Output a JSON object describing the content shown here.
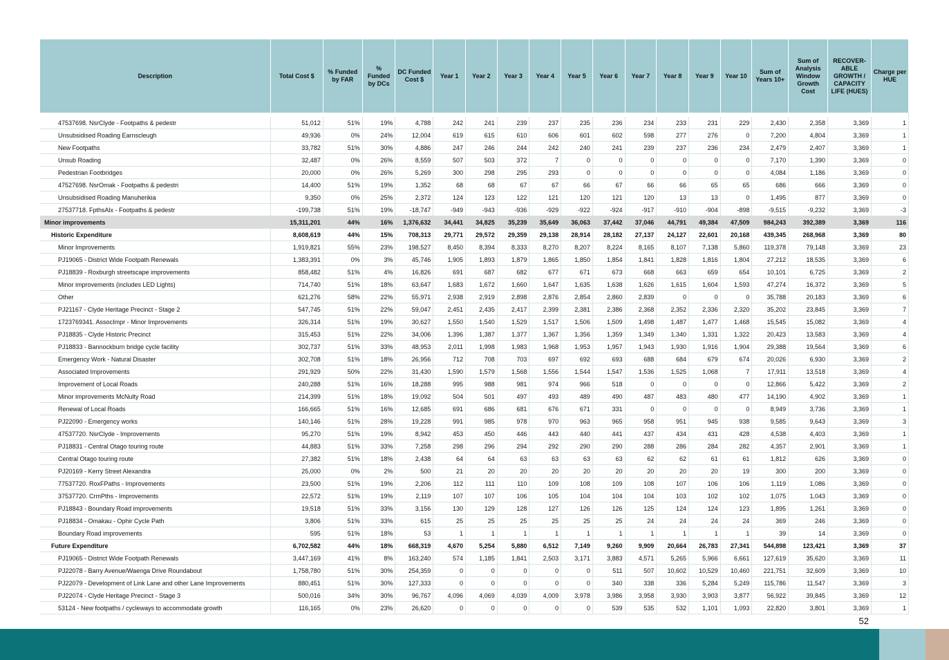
{
  "headers": [
    "Description",
    "Total Cost $",
    "% Funded by FAR",
    "% Funded by DCs",
    "DC Funded Cost $",
    "Year 1",
    "Year 2",
    "Year 3",
    "Year 4",
    "Year 5",
    "Year 6",
    "Year 7",
    "Year 8",
    "Year 9",
    "Year 10",
    "Sum of Years 10+",
    "Sum of Analysis Window Growth Cost",
    "RECOVER-ABLE GROWTH / CAPACITY LIFE (HUES)",
    "Charge per HUE"
  ],
  "rows": [
    {
      "level": 2,
      "cells": [
        "47537698. NsrClyde - Footpaths & pedestr",
        "51,012",
        "51%",
        "19%",
        "4,788",
        "242",
        "241",
        "239",
        "237",
        "235",
        "236",
        "234",
        "233",
        "231",
        "229",
        "2,430",
        "2,358",
        "3,369",
        "1"
      ]
    },
    {
      "level": 2,
      "cells": [
        "Unsubsidised Roading Earnscleugh",
        "49,936",
        "0%",
        "24%",
        "12,004",
        "619",
        "615",
        "610",
        "606",
        "601",
        "602",
        "598",
        "277",
        "276",
        "0",
        "7,200",
        "4,804",
        "3,369",
        "1"
      ]
    },
    {
      "level": 2,
      "cells": [
        "New Footpaths",
        "33,782",
        "51%",
        "30%",
        "4,886",
        "247",
        "246",
        "244",
        "242",
        "240",
        "241",
        "239",
        "237",
        "236",
        "234",
        "2,479",
        "2,407",
        "3,369",
        "1"
      ]
    },
    {
      "level": 2,
      "cells": [
        "Unsub Roading",
        "32,487",
        "0%",
        "26%",
        "8,559",
        "507",
        "503",
        "372",
        "7",
        "0",
        "0",
        "0",
        "0",
        "0",
        "0",
        "7,170",
        "1,390",
        "3,369",
        "0"
      ]
    },
    {
      "level": 2,
      "cells": [
        "Pedestrian Footbridges",
        "20,000",
        "0%",
        "26%",
        "5,269",
        "300",
        "298",
        "295",
        "293",
        "0",
        "0",
        "0",
        "0",
        "0",
        "0",
        "4,084",
        "1,186",
        "3,369",
        "0"
      ]
    },
    {
      "level": 2,
      "cells": [
        "47527698. NsrOmak - Footpaths & pedestri",
        "14,400",
        "51%",
        "19%",
        "1,352",
        "68",
        "68",
        "67",
        "67",
        "66",
        "67",
        "66",
        "66",
        "65",
        "65",
        "686",
        "666",
        "3,369",
        "0"
      ]
    },
    {
      "level": 2,
      "cells": [
        "Unsubsidised Roading Manuherikia",
        "9,350",
        "0%",
        "25%",
        "2,372",
        "124",
        "123",
        "122",
        "121",
        "120",
        "121",
        "120",
        "13",
        "13",
        "0",
        "1,495",
        "877",
        "3,369",
        "0"
      ]
    },
    {
      "level": 2,
      "cells": [
        "27537718. FpthsAlx - Footpaths & pedestr",
        "-199,738",
        "51%",
        "19%",
        "-18,747",
        "-949",
        "-943",
        "-936",
        "-929",
        "-922",
        "-924",
        "-917",
        "-910",
        "-904",
        "-898",
        "-9,515",
        "-9,232",
        "3,369",
        "-3"
      ]
    },
    {
      "level": 0,
      "bold": true,
      "shaded": true,
      "cells": [
        "Minor improvements",
        "15,311,201",
        "44%",
        "16%",
        "1,376,632",
        "34,441",
        "34,825",
        "35,239",
        "35,649",
        "36,063",
        "37,442",
        "37,046",
        "44,791",
        "49,384",
        "47,509",
        "984,243",
        "392,389",
        "3,369",
        "116"
      ]
    },
    {
      "level": 1,
      "bold": true,
      "cells": [
        "Historic Expenditure",
        "8,608,619",
        "44%",
        "15%",
        "708,313",
        "29,771",
        "29,572",
        "29,359",
        "29,138",
        "28,914",
        "28,182",
        "27,137",
        "24,127",
        "22,601",
        "20,168",
        "439,345",
        "268,968",
        "3,369",
        "80"
      ]
    },
    {
      "level": 2,
      "cells": [
        "Minor Improvements",
        "1,919,821",
        "55%",
        "23%",
        "198,527",
        "8,450",
        "8,394",
        "8,333",
        "8,270",
        "8,207",
        "8,224",
        "8,165",
        "8,107",
        "7,138",
        "5,860",
        "119,378",
        "79,148",
        "3,369",
        "23"
      ]
    },
    {
      "level": 2,
      "cells": [
        "PJ19065 - District Wide Footpath Renewals",
        "1,383,391",
        "0%",
        "3%",
        "45,746",
        "1,905",
        "1,893",
        "1,879",
        "1,865",
        "1,850",
        "1,854",
        "1,841",
        "1,828",
        "1,816",
        "1,804",
        "27,212",
        "18,535",
        "3,369",
        "6"
      ]
    },
    {
      "level": 2,
      "cells": [
        "PJ18839 - Roxburgh streetscape improvements",
        "858,482",
        "51%",
        "4%",
        "16,826",
        "691",
        "687",
        "682",
        "677",
        "671",
        "673",
        "668",
        "663",
        "659",
        "654",
        "10,101",
        "6,725",
        "3,369",
        "2"
      ]
    },
    {
      "level": 2,
      "cells": [
        "Minor improvements (includes LED Lights)",
        "714,740",
        "51%",
        "18%",
        "63,647",
        "1,683",
        "1,672",
        "1,660",
        "1,647",
        "1,635",
        "1,638",
        "1,626",
        "1,615",
        "1,604",
        "1,593",
        "47,274",
        "16,372",
        "3,369",
        "5"
      ]
    },
    {
      "level": 2,
      "cells": [
        "Other",
        "621,276",
        "58%",
        "22%",
        "55,971",
        "2,938",
        "2,919",
        "2,898",
        "2,876",
        "2,854",
        "2,860",
        "2,839",
        "0",
        "0",
        "0",
        "35,788",
        "20,183",
        "3,369",
        "6"
      ]
    },
    {
      "level": 2,
      "cells": [
        "PJ21167 - Clyde Heritage Precinct - Stage 2",
        "547,745",
        "51%",
        "22%",
        "59,047",
        "2,451",
        "2,435",
        "2,417",
        "2,399",
        "2,381",
        "2,386",
        "2,368",
        "2,352",
        "2,336",
        "2,320",
        "35,202",
        "23,845",
        "3,369",
        "7"
      ]
    },
    {
      "level": 2,
      "cells": [
        "1723769341. AssocImpr - Minor Improvements",
        "326,314",
        "51%",
        "19%",
        "30,627",
        "1,550",
        "1,540",
        "1,529",
        "1,517",
        "1,506",
        "1,509",
        "1,498",
        "1,487",
        "1,477",
        "1,468",
        "15,545",
        "15,082",
        "3,369",
        "4"
      ]
    },
    {
      "level": 2,
      "cells": [
        "PJ18835 - Clyde Historic Precinct",
        "315,453",
        "51%",
        "22%",
        "34,006",
        "1,396",
        "1,387",
        "1,377",
        "1,367",
        "1,356",
        "1,359",
        "1,349",
        "1,340",
        "1,331",
        "1,322",
        "20,423",
        "13,583",
        "3,369",
        "4"
      ]
    },
    {
      "level": 2,
      "cells": [
        "PJ18833 - Bannockburn bridge cycle facility",
        "302,737",
        "51%",
        "33%",
        "48,953",
        "2,011",
        "1,998",
        "1,983",
        "1,968",
        "1,953",
        "1,957",
        "1,943",
        "1,930",
        "1,916",
        "1,904",
        "29,388",
        "19,564",
        "3,369",
        "6"
      ]
    },
    {
      "level": 2,
      "cells": [
        "Emergency Work - Natural Disaster",
        "302,708",
        "51%",
        "18%",
        "26,956",
        "712",
        "708",
        "703",
        "697",
        "692",
        "693",
        "688",
        "684",
        "679",
        "674",
        "20,026",
        "6,930",
        "3,369",
        "2"
      ]
    },
    {
      "level": 2,
      "cells": [
        "Associated Improvements",
        "291,929",
        "50%",
        "22%",
        "31,430",
        "1,590",
        "1,579",
        "1,568",
        "1,556",
        "1,544",
        "1,547",
        "1,536",
        "1,525",
        "1,068",
        "7",
        "17,911",
        "13,518",
        "3,369",
        "4"
      ]
    },
    {
      "level": 2,
      "cells": [
        "Improvement of Local Roads",
        "240,288",
        "51%",
        "16%",
        "18,288",
        "995",
        "988",
        "981",
        "974",
        "966",
        "518",
        "0",
        "0",
        "0",
        "0",
        "12,866",
        "5,422",
        "3,369",
        "2"
      ]
    },
    {
      "level": 2,
      "cells": [
        "Minor improvements McNulty Road",
        "214,399",
        "51%",
        "18%",
        "19,092",
        "504",
        "501",
        "497",
        "493",
        "489",
        "490",
        "487",
        "483",
        "480",
        "477",
        "14,190",
        "4,902",
        "3,369",
        "1"
      ]
    },
    {
      "level": 2,
      "cells": [
        "Renewal of Local Roads",
        "166,665",
        "51%",
        "16%",
        "12,685",
        "691",
        "686",
        "681",
        "676",
        "671",
        "331",
        "0",
        "0",
        "0",
        "0",
        "8,949",
        "3,736",
        "3,369",
        "1"
      ]
    },
    {
      "level": 2,
      "cells": [
        "PJ22090 - Emergency works",
        "140,146",
        "51%",
        "28%",
        "19,228",
        "991",
        "985",
        "978",
        "970",
        "963",
        "965",
        "958",
        "951",
        "945",
        "938",
        "9,585",
        "9,643",
        "3,369",
        "3"
      ]
    },
    {
      "level": 2,
      "cells": [
        "47537720. NsrClyde - Improvements",
        "95,270",
        "51%",
        "19%",
        "8,942",
        "453",
        "450",
        "446",
        "443",
        "440",
        "441",
        "437",
        "434",
        "431",
        "428",
        "4,538",
        "4,403",
        "3,369",
        "1"
      ]
    },
    {
      "level": 2,
      "cells": [
        "PJ18831 - Central Otago touring route",
        "44,883",
        "51%",
        "33%",
        "7,258",
        "298",
        "296",
        "294",
        "292",
        "290",
        "290",
        "288",
        "286",
        "284",
        "282",
        "4,357",
        "2,901",
        "3,369",
        "1"
      ]
    },
    {
      "level": 2,
      "cells": [
        "Central Otago touring route",
        "27,382",
        "51%",
        "18%",
        "2,438",
        "64",
        "64",
        "63",
        "63",
        "63",
        "63",
        "62",
        "62",
        "61",
        "61",
        "1,812",
        "626",
        "3,369",
        "0"
      ]
    },
    {
      "level": 2,
      "cells": [
        "PJ20169 - Kerry Street Alexandra",
        "25,000",
        "0%",
        "2%",
        "500",
        "21",
        "20",
        "20",
        "20",
        "20",
        "20",
        "20",
        "20",
        "20",
        "19",
        "300",
        "200",
        "3,369",
        "0"
      ]
    },
    {
      "level": 2,
      "cells": [
        "77537720. RoxFPaths - Improvements",
        "23,500",
        "51%",
        "19%",
        "2,206",
        "112",
        "111",
        "110",
        "109",
        "108",
        "109",
        "108",
        "107",
        "106",
        "106",
        "1,119",
        "1,086",
        "3,369",
        "0"
      ]
    },
    {
      "level": 2,
      "cells": [
        "37537720. CrmPths - Improvements",
        "22,572",
        "51%",
        "19%",
        "2,119",
        "107",
        "107",
        "106",
        "105",
        "104",
        "104",
        "104",
        "103",
        "102",
        "102",
        "1,075",
        "1,043",
        "3,369",
        "0"
      ]
    },
    {
      "level": 2,
      "cells": [
        "PJ18843 - Boundary Road improvements",
        "19,518",
        "51%",
        "33%",
        "3,156",
        "130",
        "129",
        "128",
        "127",
        "126",
        "126",
        "125",
        "124",
        "124",
        "123",
        "1,895",
        "1,261",
        "3,369",
        "0"
      ]
    },
    {
      "level": 2,
      "cells": [
        "PJ18834 - Omakau - Ophir Cycle Path",
        "3,806",
        "51%",
        "33%",
        "615",
        "25",
        "25",
        "25",
        "25",
        "25",
        "25",
        "24",
        "24",
        "24",
        "24",
        "369",
        "246",
        "3,369",
        "0"
      ]
    },
    {
      "level": 2,
      "cells": [
        "Boundary Road improvements",
        "595",
        "51%",
        "18%",
        "53",
        "1",
        "1",
        "1",
        "1",
        "1",
        "1",
        "1",
        "1",
        "1",
        "1",
        "39",
        "14",
        "3,369",
        "0"
      ]
    },
    {
      "level": 1,
      "bold": true,
      "cells": [
        "Future Expenditure",
        "6,702,582",
        "44%",
        "18%",
        "668,319",
        "4,670",
        "5,254",
        "5,880",
        "6,512",
        "7,149",
        "9,260",
        "9,909",
        "20,664",
        "26,783",
        "27,341",
        "544,898",
        "123,421",
        "3,369",
        "37"
      ]
    },
    {
      "level": 2,
      "cells": [
        "PJ19065 - District Wide Footpath Renewals",
        "3,447,169",
        "41%",
        "8%",
        "163,240",
        "574",
        "1,185",
        "1,841",
        "2,503",
        "3,171",
        "3,883",
        "4,571",
        "5,265",
        "5,966",
        "6,661",
        "127,619",
        "35,620",
        "3,369",
        "11"
      ]
    },
    {
      "level": 2,
      "cells": [
        "PJ22078 - Barry Avenue/Waenga Drive Roundabout",
        "1,758,780",
        "51%",
        "30%",
        "254,359",
        "0",
        "0",
        "0",
        "0",
        "0",
        "511",
        "507",
        "10,602",
        "10,529",
        "10,460",
        "221,751",
        "32,609",
        "3,369",
        "10"
      ]
    },
    {
      "level": 2,
      "cells": [
        "PJ22079 - Development of Link Lane and other Lane Improvements",
        "880,451",
        "51%",
        "30%",
        "127,333",
        "0",
        "0",
        "0",
        "0",
        "0",
        "340",
        "338",
        "336",
        "5,284",
        "5,249",
        "115,786",
        "11,547",
        "3,369",
        "3"
      ]
    },
    {
      "level": 2,
      "cells": [
        "PJ22074 - Clyde Heritage Precinct - Stage 3",
        "500,016",
        "34%",
        "30%",
        "96,767",
        "4,096",
        "4,069",
        "4,039",
        "4,009",
        "3,978",
        "3,986",
        "3,958",
        "3,930",
        "3,903",
        "3,877",
        "56,922",
        "39,845",
        "3,369",
        "12"
      ]
    },
    {
      "level": 2,
      "cells": [
        "53124 - New footpaths / cycleways to accommodate growth",
        "116,165",
        "0%",
        "23%",
        "26,620",
        "0",
        "0",
        "0",
        "0",
        "0",
        "539",
        "535",
        "532",
        "1,101",
        "1,093",
        "22,820",
        "3,801",
        "3,369",
        "1"
      ]
    }
  ],
  "page_number": "52",
  "colors": {
    "header_bg": "#a2ccd1",
    "shaded_row": "#dcdcdc",
    "footer_teal": "#0b7479",
    "footer_light": "#a2ccd1",
    "footer_tan": "#cdb09b"
  }
}
